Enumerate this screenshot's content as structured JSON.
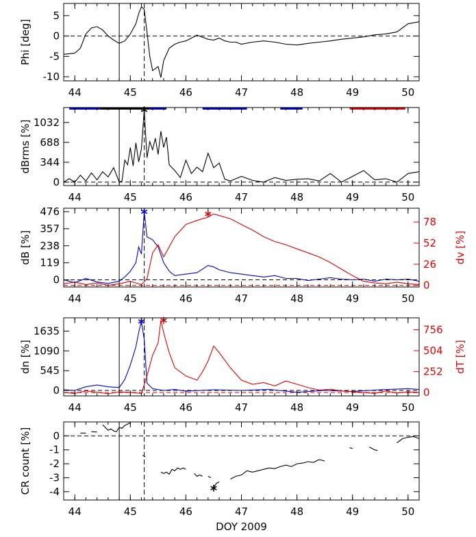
{
  "chart_data": [
    {
      "type": "line",
      "ylabel": "Phi [deg]",
      "xlim": [
        43.8,
        50.2
      ],
      "ylim": [
        -11,
        8
      ],
      "yticks": [
        -10,
        -5,
        0,
        5
      ],
      "xticks": [
        "44",
        "45",
        "46",
        "47",
        "48",
        "49",
        "50"
      ],
      "hline": 0,
      "series": [
        {
          "color": "#000000",
          "x": [
            43.8,
            44.0,
            44.1,
            44.2,
            44.3,
            44.4,
            44.5,
            44.6,
            44.7,
            44.8,
            44.9,
            45.0,
            45.1,
            45.15,
            45.2,
            45.25,
            45.3,
            45.35,
            45.4,
            45.5,
            45.55,
            45.6,
            45.7,
            45.8,
            45.9,
            46.0,
            46.1,
            46.2,
            46.3,
            46.4,
            46.5,
            46.6,
            46.7,
            46.8,
            46.9,
            47.0,
            47.2,
            47.4,
            47.6,
            47.8,
            48.0,
            48.2,
            48.4,
            48.6,
            48.8,
            49.0,
            49.2,
            49.4,
            49.6,
            49.8,
            50.0,
            50.2
          ],
          "y": [
            -4.5,
            -4.2,
            -3.0,
            0.5,
            2.0,
            2.3,
            1.5,
            0.0,
            -1.0,
            -1.8,
            -1.2,
            0.5,
            3.0,
            5.5,
            7.2,
            6.5,
            1.0,
            -5.0,
            -8.5,
            -7.5,
            -10.2,
            -6.0,
            -3.0,
            -2.0,
            -1.5,
            -1.2,
            -0.5,
            0.2,
            -0.3,
            -0.8,
            -1.0,
            -0.5,
            -1.2,
            -1.5,
            -1.5,
            -2.0,
            -1.5,
            -1.2,
            -1.5,
            -2.0,
            -2.2,
            -1.8,
            -1.5,
            -1.2,
            -0.8,
            -0.5,
            -0.2,
            0.3,
            0.5,
            1.0,
            3.0,
            3.5
          ]
        }
      ]
    },
    {
      "type": "line",
      "ylabel": "dBrms [%]",
      "xlim": [
        43.8,
        50.2
      ],
      "ylim": [
        -60,
        1290
      ],
      "yticks": [
        0,
        344,
        688,
        1032
      ],
      "xticks": [
        "44",
        "45",
        "46",
        "47",
        "48",
        "49",
        "50"
      ],
      "hline": 0,
      "marker": {
        "x": 45.25,
        "y": 1250
      },
      "bands": [
        {
          "x0": 43.9,
          "x1": 44.45,
          "color": "#0000cc"
        },
        {
          "x0": 44.45,
          "x1": 45.35,
          "color": "#000000"
        },
        {
          "x0": 45.35,
          "x1": 45.65,
          "color": "#0000cc"
        },
        {
          "x0": 46.3,
          "x1": 47.1,
          "color": "#0000cc"
        },
        {
          "x0": 47.7,
          "x1": 48.1,
          "color": "#0000cc"
        },
        {
          "x0": 48.95,
          "x1": 49.95,
          "color": "#e00000"
        }
      ],
      "series": [
        {
          "color": "#000000",
          "x": [
            43.8,
            43.9,
            44.0,
            44.1,
            44.2,
            44.3,
            44.4,
            44.5,
            44.6,
            44.7,
            44.8,
            44.85,
            44.9,
            44.95,
            45.0,
            45.05,
            45.1,
            45.15,
            45.2,
            45.25,
            45.3,
            45.35,
            45.4,
            45.45,
            45.5,
            45.55,
            45.6,
            45.65,
            45.7,
            45.8,
            45.9,
            46.0,
            46.1,
            46.2,
            46.3,
            46.4,
            46.5,
            46.6,
            46.7,
            46.8,
            47.0,
            47.2,
            47.4,
            47.6,
            47.8,
            48.0,
            48.2,
            48.4,
            48.6,
            48.8,
            49.0,
            49.2,
            49.4,
            49.6,
            49.8,
            50.0,
            50.2
          ],
          "y": [
            0,
            60,
            0,
            120,
            20,
            160,
            40,
            180,
            90,
            250,
            0,
            20,
            380,
            300,
            600,
            280,
            680,
            350,
            580,
            1250,
            420,
            700,
            560,
            760,
            480,
            880,
            600,
            780,
            300,
            200,
            80,
            380,
            150,
            260,
            180,
            500,
            250,
            330,
            50,
            20,
            100,
            30,
            0,
            80,
            30,
            50,
            60,
            20,
            150,
            0,
            100,
            200,
            40,
            60,
            0,
            150,
            180
          ]
        }
      ]
    },
    {
      "type": "line",
      "ylabel": "dB [%]",
      "y2label": "dv [%]",
      "xlim": [
        43.8,
        50.2
      ],
      "ylim": [
        -50,
        500
      ],
      "y2lim": [
        -2,
        95
      ],
      "yticks": [
        0,
        119,
        238,
        357,
        476
      ],
      "y2ticks": [
        0,
        26,
        52,
        78
      ],
      "xticks": [
        "44",
        "45",
        "46",
        "47",
        "48",
        "49",
        "50"
      ],
      "hline": 0,
      "hline2": 0,
      "markers": [
        {
          "x": 45.25,
          "y": 476,
          "axis": "left",
          "color": "#0000cc"
        },
        {
          "x": 46.4,
          "y": 88,
          "axis": "right",
          "color": "#e00000"
        }
      ],
      "series": [
        {
          "color": "#0000cc",
          "axis": "left",
          "x": [
            43.8,
            44.0,
            44.2,
            44.4,
            44.6,
            44.8,
            44.9,
            45.0,
            45.1,
            45.15,
            45.2,
            45.25,
            45.3,
            45.4,
            45.5,
            45.6,
            45.7,
            45.8,
            46.0,
            46.2,
            46.4,
            46.5,
            46.6,
            46.8,
            47.0,
            47.2,
            47.4,
            47.6,
            47.8,
            48.0,
            48.2,
            48.4,
            48.6,
            48.8,
            49.0,
            49.2,
            49.4,
            49.6,
            49.8,
            50.0,
            50.2
          ],
          "y": [
            0,
            -20,
            10,
            -15,
            -25,
            -10,
            20,
            60,
            120,
            230,
            180,
            476,
            300,
            280,
            230,
            120,
            60,
            30,
            40,
            50,
            100,
            90,
            70,
            50,
            40,
            30,
            20,
            30,
            10,
            10,
            -5,
            5,
            15,
            5,
            0,
            5,
            -10,
            5,
            0,
            5,
            -10
          ]
        },
        {
          "color": "#e00000",
          "axis": "right",
          "x": [
            43.8,
            44.0,
            44.2,
            44.4,
            44.6,
            44.8,
            45.0,
            45.1,
            45.2,
            45.3,
            45.4,
            45.5,
            45.6,
            45.8,
            46.0,
            46.2,
            46.4,
            46.5,
            46.6,
            46.8,
            47.0,
            47.2,
            47.4,
            47.6,
            47.8,
            48.0,
            48.2,
            48.4,
            48.6,
            48.8,
            49.0,
            49.2,
            49.4,
            49.6,
            49.8,
            50.0,
            50.2
          ],
          "y": [
            2,
            4,
            1,
            3,
            0,
            2,
            5,
            3,
            1,
            8,
            40,
            50,
            35,
            60,
            75,
            80,
            84,
            88,
            86,
            82,
            75,
            68,
            60,
            54,
            50,
            45,
            40,
            35,
            28,
            20,
            12,
            5,
            3,
            2,
            4,
            2,
            1
          ]
        }
      ]
    },
    {
      "type": "line",
      "ylabel": "dn [%]",
      "y2label": "dT [%]",
      "xlim": [
        43.8,
        50.2
      ],
      "ylim": [
        -150,
        2000
      ],
      "y2lim": [
        -40,
        900
      ],
      "yticks": [
        0,
        545,
        1090,
        1635
      ],
      "y2ticks": [
        0,
        252,
        504,
        756
      ],
      "xticks": [
        "44",
        "45",
        "46",
        "47",
        "48",
        "49",
        "50"
      ],
      "hline": 0,
      "hline2": 0,
      "markers": [
        {
          "x": 45.2,
          "y": 1900,
          "axis": "left",
          "color": "#0000cc"
        },
        {
          "x": 45.6,
          "y": 870,
          "axis": "right",
          "color": "#e00000"
        }
      ],
      "series": [
        {
          "color": "#0000cc",
          "axis": "left",
          "x": [
            43.8,
            44.0,
            44.2,
            44.4,
            44.6,
            44.8,
            44.9,
            45.0,
            45.1,
            45.15,
            45.2,
            45.25,
            45.3,
            45.4,
            45.6,
            45.8,
            46.0,
            46.5,
            47.0,
            47.5,
            48.0,
            48.5,
            49.0,
            49.5,
            50.0,
            50.2
          ],
          "y": [
            20,
            0,
            100,
            150,
            100,
            80,
            300,
            700,
            1200,
            1600,
            1900,
            1400,
            200,
            50,
            0,
            30,
            -20,
            20,
            0,
            30,
            -50,
            0,
            -30,
            20,
            50,
            30
          ]
        },
        {
          "color": "#e00000",
          "axis": "right",
          "x": [
            43.8,
            44.0,
            44.2,
            44.4,
            44.6,
            44.8,
            45.0,
            45.2,
            45.3,
            45.4,
            45.5,
            45.55,
            45.6,
            45.65,
            45.7,
            45.8,
            46.0,
            46.2,
            46.3,
            46.4,
            46.5,
            46.6,
            46.8,
            47.0,
            47.2,
            47.4,
            47.6,
            47.8,
            48.0,
            48.2,
            48.4,
            48.6,
            48.8,
            49.0,
            49.2,
            49.4,
            49.6,
            49.8,
            50.0,
            50.2
          ],
          "y": [
            0,
            -10,
            20,
            5,
            -15,
            10,
            0,
            -10,
            200,
            450,
            600,
            870,
            720,
            600,
            480,
            300,
            200,
            150,
            250,
            380,
            560,
            480,
            300,
            150,
            100,
            120,
            80,
            140,
            100,
            60,
            30,
            40,
            20,
            10,
            0,
            -10,
            20,
            -5,
            10,
            0
          ]
        }
      ]
    },
    {
      "type": "line",
      "ylabel": "CR count [%]",
      "xlabel": "DOY 2009",
      "xlim": [
        43.8,
        50.2
      ],
      "ylim": [
        -4.6,
        1.0
      ],
      "yticks": [
        -4,
        -3,
        -2,
        -1,
        0
      ],
      "xticks": [
        "44",
        "45",
        "46",
        "47",
        "48",
        "49",
        "50"
      ],
      "hline": 0,
      "marker": {
        "x": 46.5,
        "y": -3.75
      },
      "segments": [
        {
          "x": [
            44.1,
            44.2
          ],
          "y": [
            0.2,
            0.2
          ]
        },
        {
          "x": [
            44.3,
            44.4
          ],
          "y": [
            0.3,
            0.28
          ]
        },
        {
          "x": [
            44.5,
            44.6,
            44.65,
            44.7,
            44.75,
            44.8,
            44.85,
            44.9,
            44.95,
            45.0
          ],
          "y": [
            0.8,
            0.4,
            0.5,
            0.35,
            0.3,
            0.6,
            0.55,
            0.75,
            0.85,
            0.95
          ]
        },
        {
          "x": [
            45.22,
            45.27
          ],
          "y": [
            -1.4,
            -1.5
          ]
        },
        {
          "x": [
            45.55,
            45.6,
            45.65,
            45.7,
            45.75,
            45.8,
            45.85,
            45.9,
            45.95,
            46.0
          ],
          "y": [
            -2.6,
            -2.7,
            -2.6,
            -2.75,
            -2.4,
            -2.5,
            -2.3,
            -2.4,
            -2.3,
            -2.4
          ]
        },
        {
          "x": [
            46.15,
            46.2,
            46.25,
            46.3
          ],
          "y": [
            -2.7,
            -2.9,
            -2.8,
            -2.9
          ]
        },
        {
          "x": [
            46.4,
            46.45
          ],
          "y": [
            -2.9,
            -3.0
          ]
        },
        {
          "x": [
            46.5,
            46.55,
            46.6
          ],
          "y": [
            -3.7,
            -3.4,
            -3.3
          ]
        },
        {
          "x": [
            46.8,
            46.9,
            47.0,
            47.1,
            47.2,
            47.3,
            47.4,
            47.5,
            47.6,
            47.7,
            47.8,
            47.9,
            48.0,
            48.1,
            48.2,
            48.3,
            48.4,
            48.5
          ],
          "y": [
            -3.1,
            -2.9,
            -2.8,
            -2.5,
            -2.6,
            -2.5,
            -2.4,
            -2.3,
            -2.35,
            -2.2,
            -2.1,
            -2.2,
            -2.0,
            -1.95,
            -1.85,
            -1.9,
            -1.7,
            -1.8
          ]
        },
        {
          "x": [
            48.95,
            49.0
          ],
          "y": [
            -0.85,
            -0.9
          ]
        },
        {
          "x": [
            49.3,
            49.4,
            49.45
          ],
          "y": [
            -0.8,
            -1.0,
            -1.05
          ]
        },
        {
          "x": [
            49.8,
            49.9,
            50.0,
            50.1,
            50.2
          ],
          "y": [
            -0.5,
            -0.2,
            -0.1,
            -0.05,
            -0.2
          ]
        }
      ]
    }
  ],
  "event_lines": {
    "solid_x": 44.8,
    "dashed_x": 45.25
  }
}
